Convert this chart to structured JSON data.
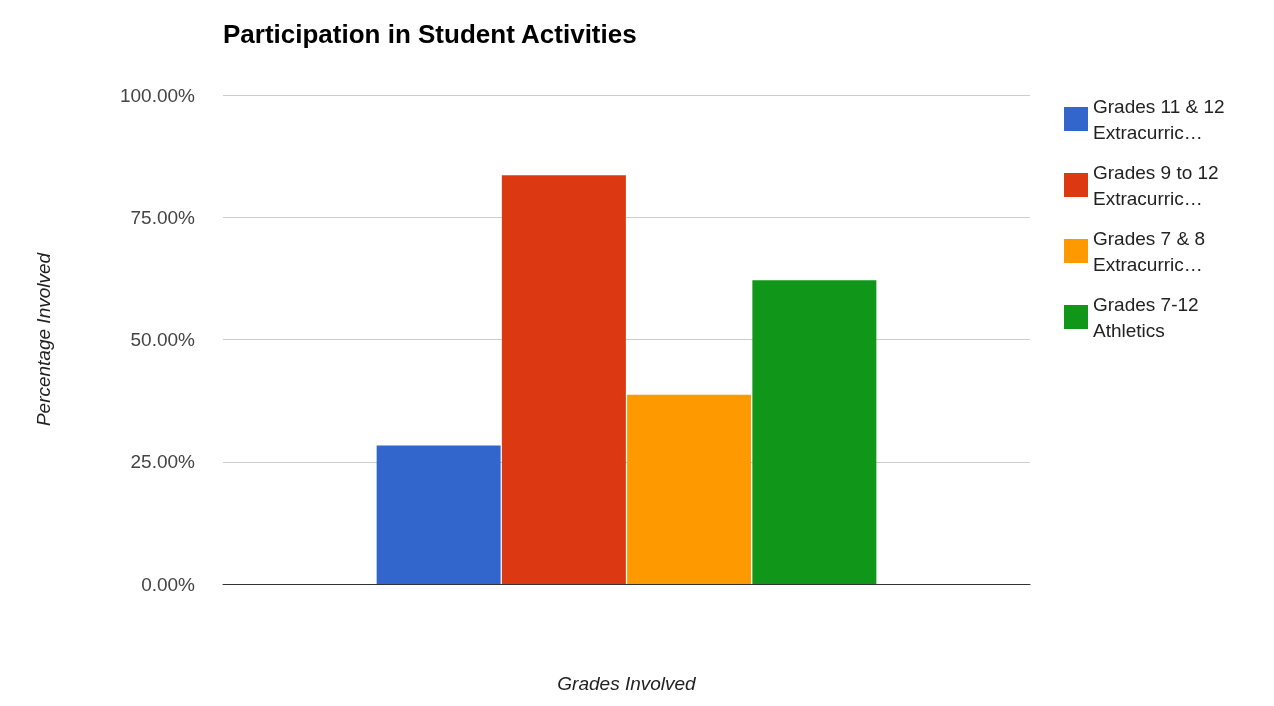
{
  "chart_data": {
    "type": "bar",
    "title": "Participation in Student Activities",
    "xlabel": "Grades Involved",
    "ylabel": "Percentage Involved",
    "categories": [
      null
    ],
    "series": [
      {
        "name": "Grades 11 & 12 Extracurric…",
        "color": "#3366cc",
        "values": [
          28.3
        ]
      },
      {
        "name": "Grades 9 to 12 Extracurric…",
        "color": "#dc3912",
        "values": [
          83.6
        ]
      },
      {
        "name": "Grades 7 & 8 Extracurric…",
        "color": "#ff9900",
        "values": [
          38.7
        ]
      },
      {
        "name": "Grades 7-12 Athletics",
        "color": "#109618",
        "values": [
          62.1
        ]
      }
    ],
    "ylim": [
      0,
      100
    ],
    "yticks": [
      {
        "value": 0,
        "label": "0.00%"
      },
      {
        "value": 25,
        "label": "25.00%"
      },
      {
        "value": 50,
        "label": "50.00%"
      },
      {
        "value": 75,
        "label": "75.00%"
      },
      {
        "value": 100,
        "label": "100.00%"
      }
    ],
    "grid": "y",
    "legend": "right"
  }
}
